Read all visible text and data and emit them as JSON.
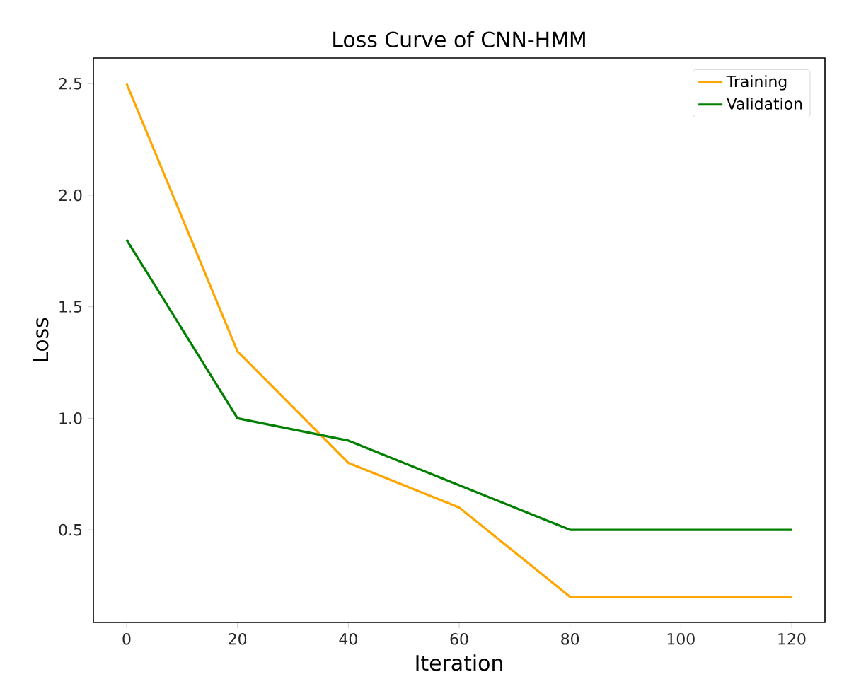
{
  "chart_data": {
    "type": "line",
    "title": "Loss Curve of CNN-HMM",
    "xlabel": "Iteration",
    "ylabel": "Loss",
    "x": [
      0,
      20,
      40,
      60,
      80,
      100,
      120
    ],
    "series": [
      {
        "name": "Training",
        "color": "#ffa500",
        "values": [
          2.5,
          1.3,
          0.8,
          0.6,
          0.2,
          0.2,
          0.2
        ]
      },
      {
        "name": "Validation",
        "color": "#008000",
        "values": [
          1.8,
          1.0,
          0.9,
          0.7,
          0.5,
          0.5,
          0.5
        ]
      }
    ],
    "xlim": [
      -6,
      126
    ],
    "ylim": [
      0.085,
      2.615
    ],
    "xticks": [
      0,
      20,
      40,
      60,
      80,
      100,
      120
    ],
    "yticks": [
      0.5,
      {
        "value": 1,
        "label": "1.0"
      },
      1.5,
      {
        "value": 2,
        "label": "2.0"
      },
      2.5
    ],
    "legend": "top right",
    "grid": false,
    "marker": "none",
    "line_style": "solid"
  }
}
